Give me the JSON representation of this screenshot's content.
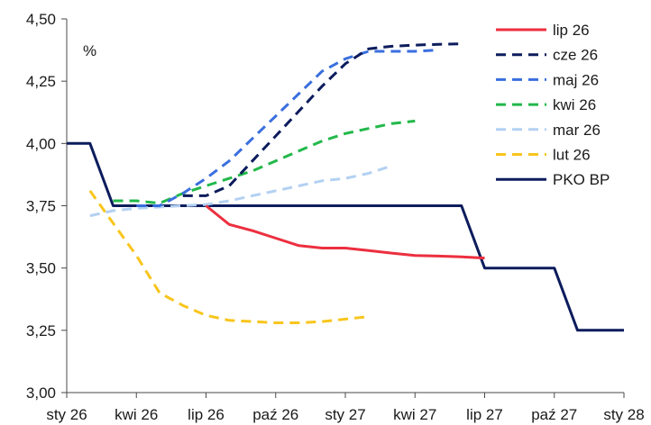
{
  "chart_data": {
    "type": "line",
    "unit_label": "%",
    "ylim": [
      3.0,
      4.5
    ],
    "yticks": [
      "3,00",
      "3,25",
      "3,50",
      "3,75",
      "4,00",
      "4,25",
      "4,50"
    ],
    "yticks_values": [
      3.0,
      3.25,
      3.5,
      3.75,
      4.0,
      4.25,
      4.5
    ],
    "xlim": [
      0,
      24
    ],
    "xticks": [
      "sty 26",
      "kwi 26",
      "lip 26",
      "paź 26",
      "sty 27",
      "kwi 27",
      "lip 27",
      "paź 27",
      "sty 28"
    ],
    "xticks_values": [
      0,
      3,
      6,
      9,
      12,
      15,
      18,
      21,
      24
    ],
    "grid": false,
    "legend_position": "top-right",
    "series": [
      {
        "name": "lip 26",
        "color": "#ec2f3f",
        "dash": "solid",
        "x": [
          6,
          7,
          8,
          9,
          10,
          11,
          12,
          13,
          14,
          15,
          16,
          17,
          18
        ],
        "y": [
          3.75,
          3.675,
          3.65,
          3.62,
          3.59,
          3.58,
          3.58,
          3.57,
          3.56,
          3.55,
          3.548,
          3.545,
          3.54
        ]
      },
      {
        "name": "cze 26",
        "color": "#0c1c5c",
        "dash": "dashed",
        "x": [
          5,
          6,
          7,
          8,
          9,
          10,
          11,
          12,
          13,
          14,
          15,
          16,
          17
        ],
        "y": [
          3.79,
          3.79,
          3.83,
          3.93,
          4.03,
          4.13,
          4.23,
          4.32,
          4.38,
          4.39,
          4.395,
          4.398,
          4.4
        ]
      },
      {
        "name": "maj 26",
        "color": "#3a6fde",
        "dash": "dashed",
        "x": [
          3,
          4,
          5,
          6,
          7,
          8,
          9,
          10,
          11,
          12,
          13,
          14,
          15,
          16
        ],
        "y": [
          3.75,
          3.75,
          3.8,
          3.86,
          3.93,
          4.02,
          4.11,
          4.2,
          4.29,
          4.34,
          4.37,
          4.37,
          4.37,
          4.375
        ]
      },
      {
        "name": "kwi 26",
        "color": "#22b84a",
        "dash": "dashed",
        "x": [
          2,
          3,
          4,
          5,
          6,
          7,
          8,
          9,
          10,
          11,
          12,
          13,
          14,
          15
        ],
        "y": [
          3.77,
          3.77,
          3.76,
          3.8,
          3.83,
          3.86,
          3.89,
          3.93,
          3.97,
          4.01,
          4.04,
          4.06,
          4.08,
          4.09
        ]
      },
      {
        "name": "mar 26",
        "color": "#b3d1f2",
        "dash": "dashed",
        "x": [
          1,
          2,
          3,
          4,
          5,
          6,
          7,
          8,
          9,
          10,
          11,
          12,
          13,
          14
        ],
        "y": [
          3.71,
          3.73,
          3.74,
          3.745,
          3.75,
          3.755,
          3.77,
          3.79,
          3.81,
          3.83,
          3.85,
          3.86,
          3.88,
          3.91
        ]
      },
      {
        "name": "lut 26",
        "color": "#f8c51c",
        "dash": "dashed",
        "x": [
          1,
          2,
          3,
          4,
          5,
          6,
          7,
          8,
          9,
          10,
          11,
          12,
          13
        ],
        "y": [
          3.81,
          3.68,
          3.55,
          3.4,
          3.35,
          3.31,
          3.29,
          3.285,
          3.28,
          3.28,
          3.285,
          3.295,
          3.305
        ]
      },
      {
        "name": "PKO BP",
        "color": "#0c1c5c",
        "dash": "solid",
        "x": [
          0,
          1,
          2,
          3,
          4,
          5,
          6,
          7,
          8,
          9,
          10,
          11,
          12,
          13,
          14,
          15,
          16,
          17,
          18,
          19,
          20,
          21,
          22,
          23,
          24
        ],
        "y": [
          4.0,
          4.0,
          3.75,
          3.75,
          3.75,
          3.75,
          3.75,
          3.75,
          3.75,
          3.75,
          3.75,
          3.75,
          3.75,
          3.75,
          3.75,
          3.75,
          3.75,
          3.75,
          3.5,
          3.5,
          3.5,
          3.5,
          3.25,
          3.25,
          3.25
        ]
      }
    ]
  }
}
